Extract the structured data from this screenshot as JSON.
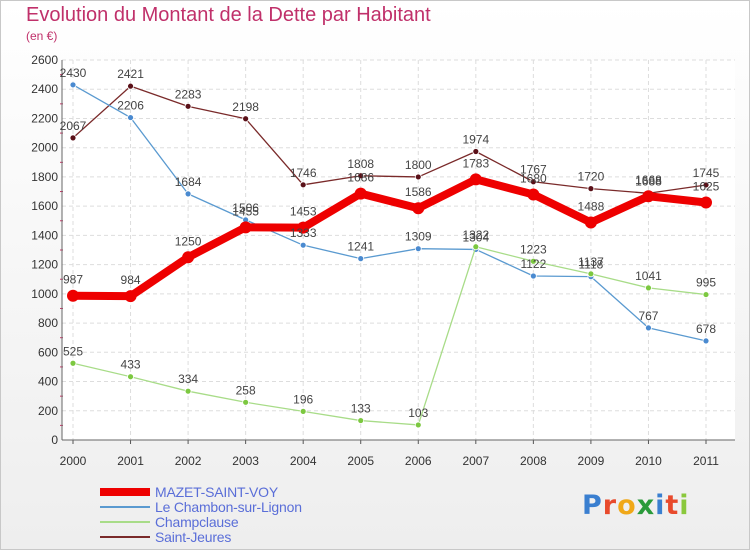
{
  "title": "Evolution du Montant de la Dette par Habitant",
  "subtitle": "(en €)",
  "logo": {
    "letters": [
      {
        "ch": "P",
        "color": "#3a7fd0"
      },
      {
        "ch": "r",
        "color": "#e84a2c"
      },
      {
        "ch": "o",
        "color": "#f0a818"
      },
      {
        "ch": "x",
        "color": "#2a9a3a"
      },
      {
        "ch": "i",
        "color": "#3a7fd0"
      },
      {
        "ch": "t",
        "color": "#e84a2c"
      },
      {
        "ch": "i",
        "color": "#8ac83c"
      }
    ]
  },
  "chart_data": {
    "type": "line",
    "x": [
      "2000",
      "2001",
      "2002",
      "2003",
      "2004",
      "2005",
      "2006",
      "2007",
      "2008",
      "2009",
      "2010",
      "2011"
    ],
    "ylim": [
      0,
      2600
    ],
    "yticks": [
      "0",
      "200",
      "400",
      "600",
      "800",
      "1000",
      "1200",
      "1400",
      "1600",
      "1800",
      "2000",
      "2200",
      "2400",
      "2600"
    ],
    "grid": true,
    "legend_position": "bottom-left",
    "series": [
      {
        "name": "Saint-Jeures",
        "color": "#7a2a2a",
        "dot": "#5a1018",
        "width": 1.3,
        "radius": 3,
        "values": [
          2067,
          2421,
          2283,
          2198,
          1746,
          1808,
          1800,
          1974,
          1767,
          1720,
          1688,
          1745
        ]
      },
      {
        "name": "Le Chambon-sur-Lignon",
        "color": "#5a9ad0",
        "dot": "#4a8ad0",
        "width": 1.3,
        "radius": 3,
        "values": [
          2430,
          2206,
          1684,
          1506,
          1333,
          1241,
          1309,
          1304,
          1122,
          1118,
          767,
          678
        ]
      },
      {
        "name": "Champclause",
        "color": "#a8dc88",
        "dot": "#7cc840",
        "width": 1.3,
        "radius": 3,
        "values": [
          525,
          433,
          334,
          258,
          196,
          133,
          103,
          1322,
          1223,
          1137,
          1041,
          995
        ]
      },
      {
        "name": "MAZET-SAINT-VOY",
        "color": "#ee0000",
        "dot": "#ee0000",
        "width": 8,
        "radius": 6,
        "values": [
          987,
          984,
          1250,
          1455,
          1453,
          1686,
          1586,
          1783,
          1680,
          1488,
          1668,
          1625
        ]
      }
    ],
    "legend_order": [
      "MAZET-SAINT-VOY",
      "Le Chambon-sur-Lignon",
      "Champclause",
      "Saint-Jeures"
    ]
  }
}
